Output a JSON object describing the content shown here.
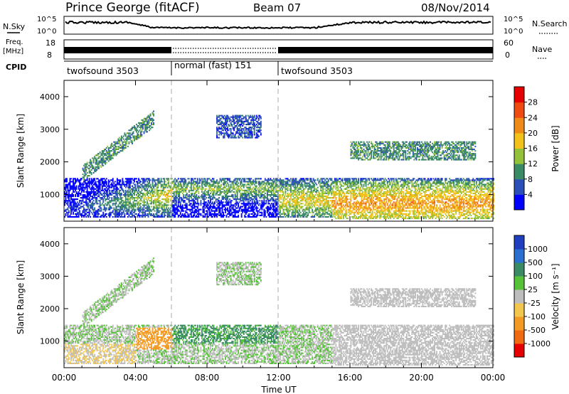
{
  "header": {
    "station": "Prince George (fitACF)",
    "beam": "Beam 07",
    "date": "08/Nov/2014"
  },
  "left_labels": {
    "nsky": "N.Sky",
    "freq_line1": "Freq.",
    "freq_line2": "[MHz]",
    "cpid": "CPID"
  },
  "right_labels": {
    "nsearch": "N.Search",
    "nave": "Nave"
  },
  "noise_panel": {
    "left_ticks": [
      "10^5",
      "10^0"
    ],
    "right_ticks": [
      "10^5",
      "10^0"
    ]
  },
  "freq_panel": {
    "left_ticks": [
      "18",
      "8"
    ],
    "right_ticks": [
      "60",
      "0"
    ]
  },
  "cpid_segments": [
    {
      "label": "twofsound 3503",
      "start_hour": 0,
      "end_hour": 6
    },
    {
      "label": "normal (fast) 151",
      "start_hour": 6,
      "end_hour": 12
    },
    {
      "label": "twofsound 3503",
      "start_hour": 12,
      "end_hour": 24
    }
  ],
  "chart_data": [
    {
      "type": "heatmap",
      "quantity": "Power",
      "ylabel": "Slant Range [km]",
      "xlabel": "",
      "xlim": [
        0,
        24
      ],
      "ylim": [
        180,
        4500
      ],
      "y_ticks": [
        "1000",
        "2000",
        "3000",
        "4000"
      ],
      "colorbar": {
        "label": "Power [dB]",
        "ticks": [
          "4",
          "8",
          "12",
          "16",
          "20",
          "24",
          "28"
        ],
        "colors": [
          "#0000ff",
          "#2b4fb8",
          "#3a8a66",
          "#93c23a",
          "#f2c21b",
          "#f08a16",
          "#ee4a12",
          "#e60000"
        ]
      }
    },
    {
      "type": "heatmap",
      "quantity": "Velocity",
      "ylabel": "Slant Range [km]",
      "xlabel": "Time UT",
      "xlim": [
        0,
        24
      ],
      "ylim": [
        180,
        4500
      ],
      "y_ticks": [
        "1000",
        "2000",
        "3000",
        "4000"
      ],
      "x_ticks": [
        "00:00",
        "04:00",
        "08:00",
        "12:00",
        "16:00",
        "20:00",
        "00:00"
      ],
      "colorbar": {
        "label": "Velocity [m s⁻¹]",
        "ticks": [
          "1000",
          "500",
          "100",
          "25",
          "-25",
          "-100",
          "-500",
          "-1000"
        ],
        "colors": [
          "#1f3fbf",
          "#2b6fd0",
          "#3a8a66",
          "#56c238",
          "#bdbdbd",
          "#f3c64d",
          "#f39a25",
          "#f06a12",
          "#e60000"
        ]
      }
    }
  ]
}
